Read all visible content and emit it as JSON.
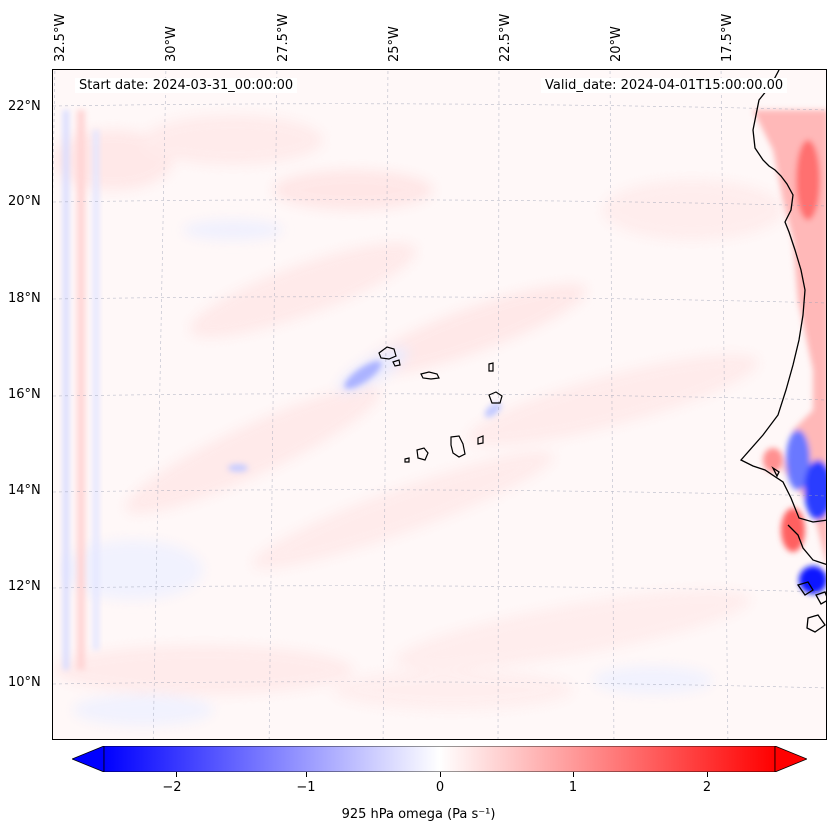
{
  "map": {
    "start_date": "Start date: 2024-03-31_00:00:00",
    "valid_date": "Valid_date: 2024-04-01T15:00:00.00",
    "lon_labels": [
      "32.5°W",
      "30°W",
      "27.5°W",
      "25°W",
      "22.5°W",
      "20°W",
      "17.5°W"
    ],
    "lat_labels": [
      "22°N",
      "20°N",
      "18°N",
      "16°N",
      "14°N",
      "12°N",
      "10°N"
    ],
    "colors": {
      "negative": "#0000ff",
      "neutral": "#ffffff",
      "positive": "#ff0000",
      "coast": "#000000"
    }
  },
  "colorbar": {
    "ticks": [
      "−2",
      "−1",
      "0",
      "1",
      "2"
    ],
    "tick_values": [
      -2,
      -1,
      0,
      1,
      2
    ],
    "range": [
      -2.5,
      2.5
    ],
    "label": "925 hPa omega (Pa s⁻¹)"
  }
}
